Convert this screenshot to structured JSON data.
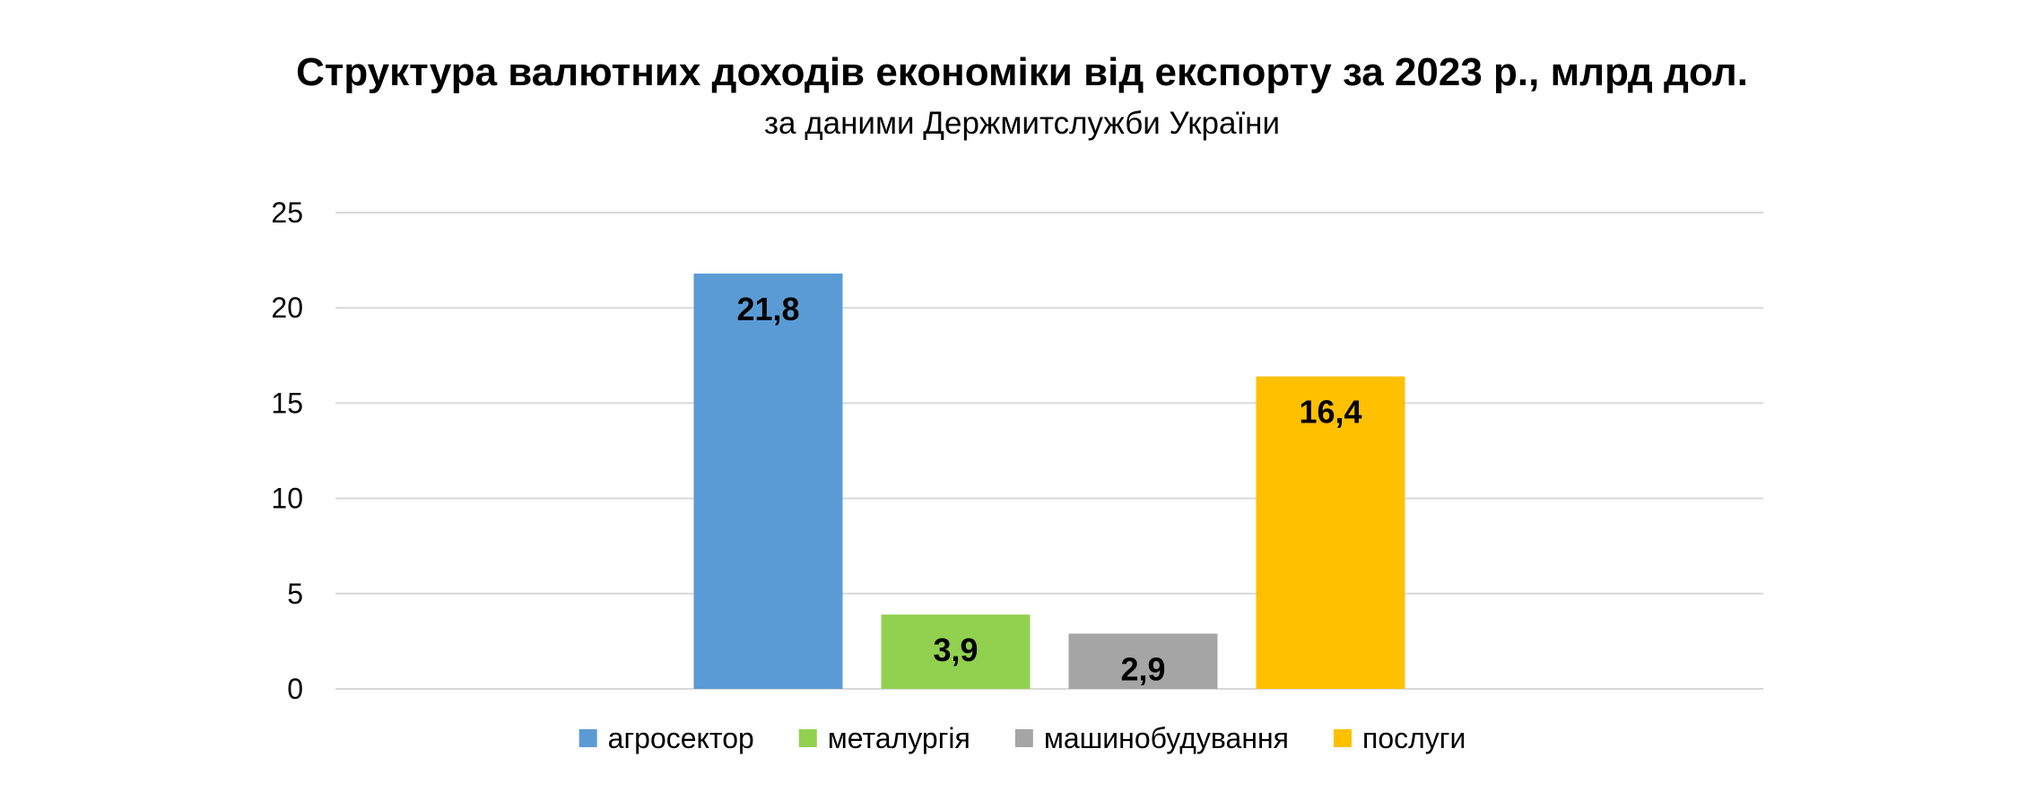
{
  "chart_data": {
    "type": "bar",
    "title": "Структура валютних доходів економіки від експорту за 2023 р., млрд дол.",
    "subtitle": "за даними Держмитслужби України",
    "categories": [
      "агросектор",
      "металургія",
      "машинобудування",
      "послуги"
    ],
    "values": [
      21.8,
      3.9,
      2.9,
      16.4
    ],
    "value_labels": [
      "21,8",
      "3,9",
      "2,9",
      "16,4"
    ],
    "colors": [
      "#5B9BD5",
      "#92D050",
      "#A5A5A5",
      "#FFC000"
    ],
    "ylim": [
      0,
      25
    ],
    "yticks": [
      0,
      5,
      10,
      15,
      20,
      25
    ],
    "grid": true,
    "legend_position": "bottom",
    "xlabel": "",
    "ylabel": ""
  }
}
